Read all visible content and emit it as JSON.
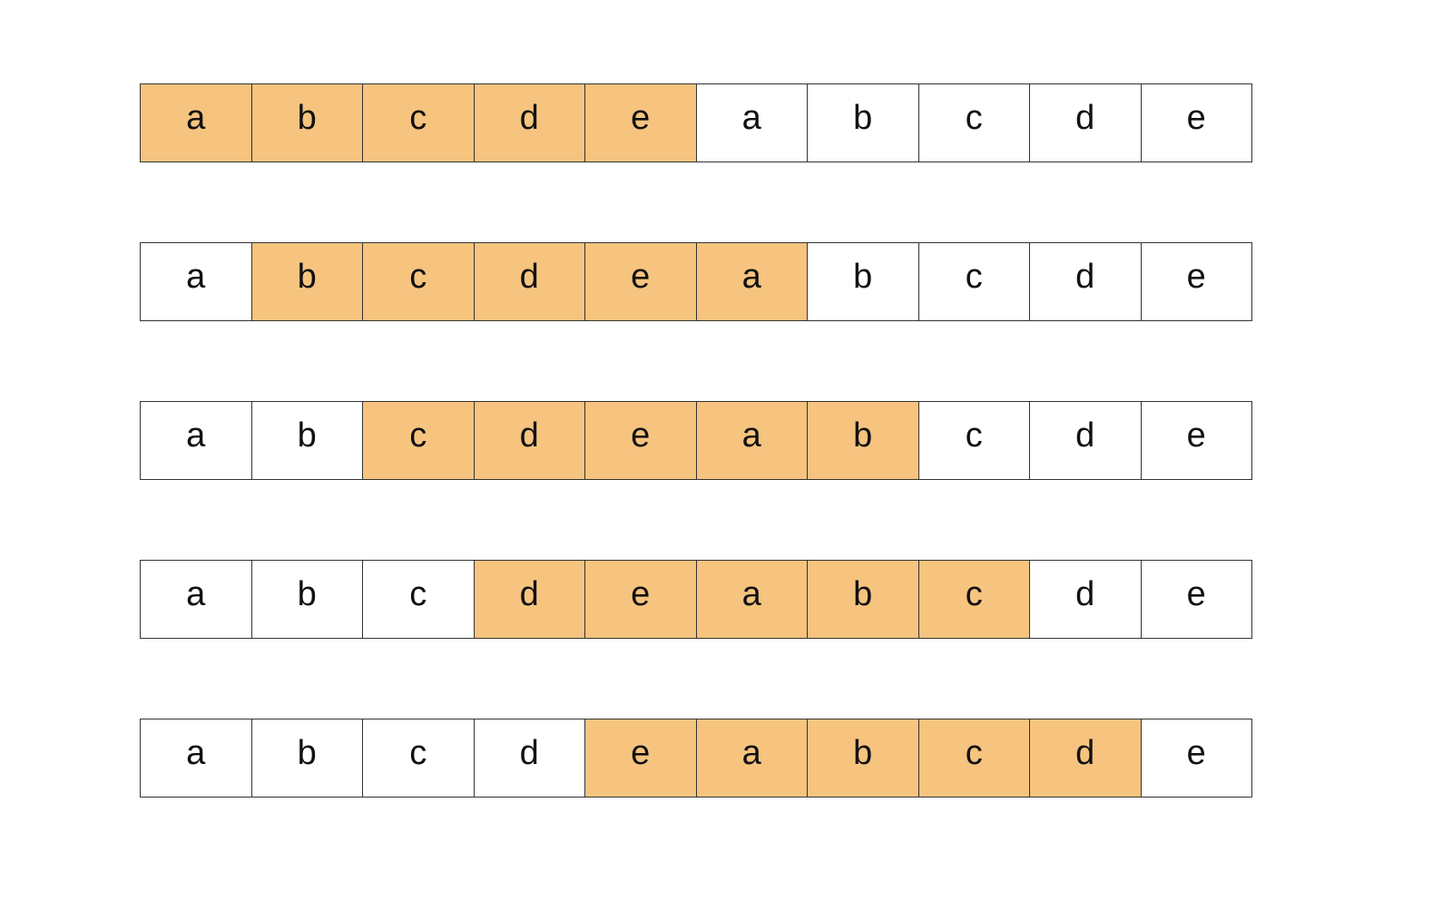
{
  "highlight_color": "#F7C47F",
  "labels": [
    "a",
    "b",
    "c",
    "d",
    "e",
    "a",
    "b",
    "c",
    "d",
    "e"
  ],
  "rows": [
    {
      "highlight_start": 0,
      "highlight_length": 5
    },
    {
      "highlight_start": 1,
      "highlight_length": 5
    },
    {
      "highlight_start": 2,
      "highlight_length": 5
    },
    {
      "highlight_start": 3,
      "highlight_length": 5
    },
    {
      "highlight_start": 4,
      "highlight_length": 5
    }
  ]
}
